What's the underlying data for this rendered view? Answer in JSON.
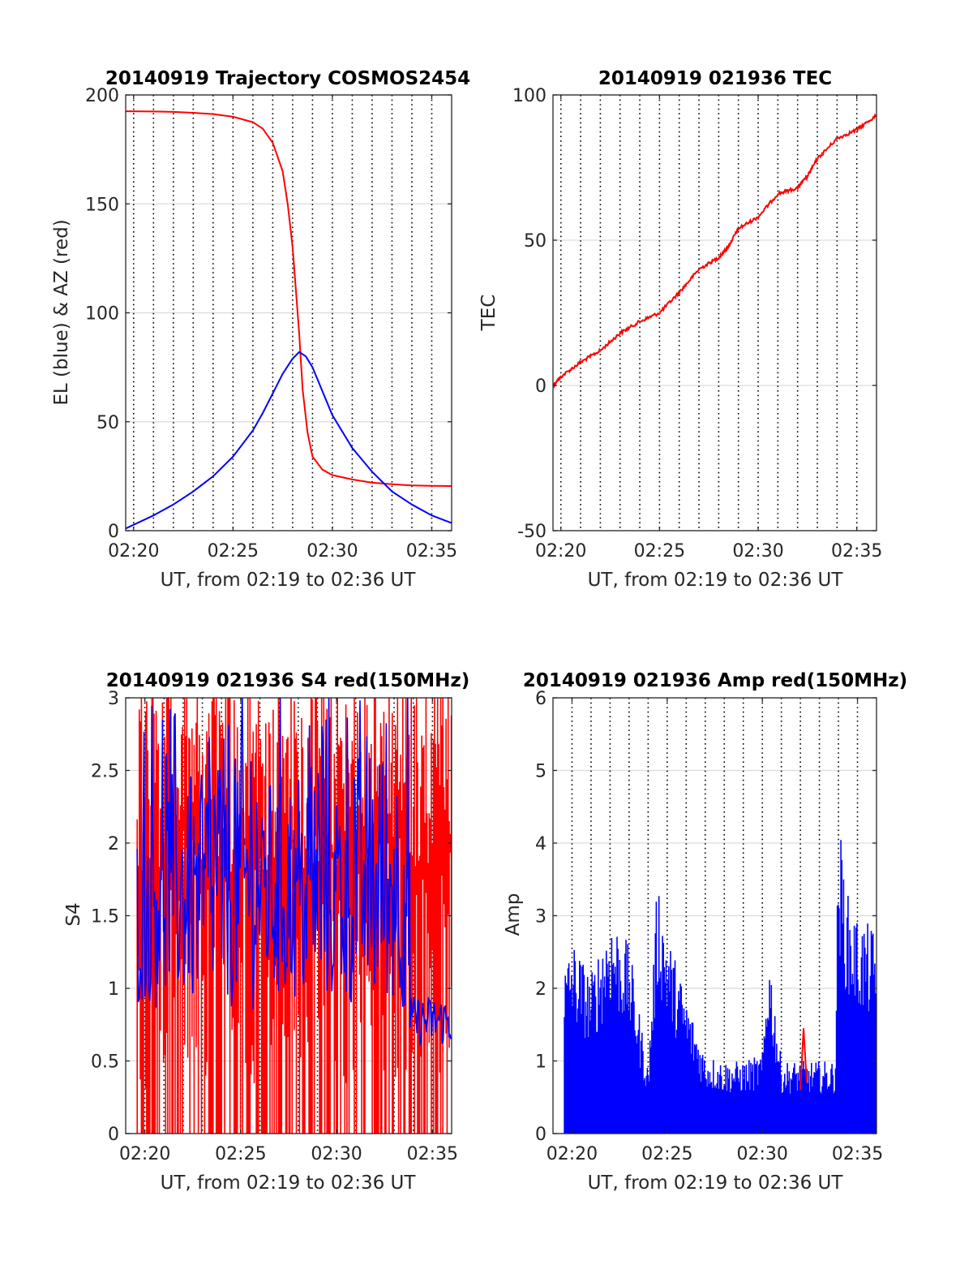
{
  "xlabel": "UT, from 02:19 to 02:36 UT",
  "colors": {
    "red": "#ff0000",
    "blue": "#0000ff",
    "grid": "#dcdcdc",
    "vline": "#000000"
  },
  "chart_data": [
    {
      "id": "traj",
      "type": "line",
      "title": "20140919 Trajectory COSMOS2454",
      "xlabel": "UT, from 02:19 to 02:36 UT",
      "ylabel": "EL (blue) & AZ (red)",
      "xlim": [
        "02:19:36",
        "02:36:00"
      ],
      "ylim": [
        0,
        200
      ],
      "xticks": [
        "02:20",
        "02:25",
        "02:30",
        "02:35"
      ],
      "yticks": [
        0,
        50,
        100,
        150,
        200
      ],
      "grid": true,
      "vlines": [
        "02:20:00",
        "02:21:00",
        "02:22:00",
        "02:23:00",
        "02:24:00",
        "02:25:00",
        "02:26:00",
        "02:27:00",
        "02:28:00",
        "02:29:00",
        "02:30:00",
        "02:31:00",
        "02:32:00",
        "02:33:00",
        "02:34:00",
        "02:35:00"
      ],
      "series": [
        {
          "color": "red",
          "x": [
            "02:19:36",
            "02:21:00",
            "02:22:00",
            "02:23:00",
            "02:24:00",
            "02:25:00",
            "02:26:00",
            "02:26:30",
            "02:27:00",
            "02:27:30",
            "02:27:45",
            "02:28:00",
            "02:28:10",
            "02:28:20",
            "02:28:30",
            "02:28:45",
            "02:29:00",
            "02:29:30",
            "02:30:00",
            "02:31:00",
            "02:32:00",
            "02:33:00",
            "02:34:00",
            "02:35:00",
            "02:36:00"
          ],
          "y": [
            192.5,
            192.4,
            192.2,
            191.8,
            191.2,
            190.0,
            187.5,
            184.5,
            178,
            165,
            150,
            130,
            110,
            90,
            65,
            45,
            34,
            28,
            25.5,
            23.5,
            22,
            21.3,
            20.8,
            20.6,
            20.5
          ]
        },
        {
          "color": "blue",
          "x": [
            "02:19:36",
            "02:21:00",
            "02:22:00",
            "02:23:00",
            "02:24:00",
            "02:25:00",
            "02:26:00",
            "02:26:30",
            "02:27:00",
            "02:27:30",
            "02:28:00",
            "02:28:20",
            "02:28:40",
            "02:29:00",
            "02:29:30",
            "02:30:00",
            "02:31:00",
            "02:32:00",
            "02:33:00",
            "02:34:00",
            "02:35:00",
            "02:36:00"
          ],
          "y": [
            1,
            7,
            12,
            18,
            25,
            34,
            46,
            54,
            63,
            72,
            79,
            82,
            80,
            75,
            64,
            53,
            38,
            27,
            18,
            12,
            7,
            3.5
          ]
        }
      ]
    },
    {
      "id": "tec",
      "type": "line",
      "title": "20140919 021936 TEC",
      "xlabel": "UT, from 02:19 to 02:36 UT",
      "ylabel": "TEC",
      "xlim": [
        "02:19:36",
        "02:36:00"
      ],
      "ylim": [
        -50,
        100
      ],
      "xticks": [
        "02:20",
        "02:25",
        "02:30",
        "02:35"
      ],
      "yticks": [
        -50,
        0,
        50,
        100
      ],
      "grid": true,
      "vlines": [
        "02:20:00",
        "02:21:00",
        "02:22:00",
        "02:23:00",
        "02:24:00",
        "02:25:00",
        "02:26:00",
        "02:27:00",
        "02:28:00",
        "02:29:00",
        "02:30:00",
        "02:31:00",
        "02:32:00",
        "02:33:00",
        "02:34:00",
        "02:35:00"
      ],
      "series": [
        {
          "color": "red",
          "x": [
            "02:19:36",
            "02:20:00",
            "02:21:00",
            "02:22:00",
            "02:23:00",
            "02:24:00",
            "02:25:00",
            "02:26:00",
            "02:27:00",
            "02:28:00",
            "02:28:30",
            "02:29:00",
            "02:30:00",
            "02:31:00",
            "02:32:00",
            "02:32:30",
            "02:33:00",
            "02:34:00",
            "02:35:00",
            "02:36:00"
          ],
          "y": [
            0,
            3,
            8,
            12,
            18,
            22,
            25,
            32,
            40,
            44,
            48,
            54,
            58,
            66,
            68,
            72,
            78,
            85,
            88,
            93
          ]
        }
      ]
    },
    {
      "id": "s4",
      "type": "line",
      "title": "20140919 021936 S4 red(150MHz)",
      "xlabel": "UT, from 02:19 to 02:36 UT",
      "ylabel": "S4",
      "xlim": [
        "02:19:00",
        "02:36:00"
      ],
      "ylim": [
        0,
        3
      ],
      "xticks": [
        "02:20",
        "02:25",
        "02:30",
        "02:35"
      ],
      "yticks": [
        0,
        0.5,
        1,
        1.5,
        2,
        2.5,
        3
      ],
      "grid": true,
      "vlines": [
        "02:20:00",
        "02:21:00",
        "02:22:00",
        "02:23:00",
        "02:24:00",
        "02:25:00",
        "02:26:00",
        "02:27:00",
        "02:28:00",
        "02:29:00",
        "02:30:00",
        "02:31:00",
        "02:32:00",
        "02:33:00",
        "02:34:00",
        "02:35:00"
      ],
      "series": [
        {
          "color": "red",
          "note_noise": "dense spikes between 0 and 3",
          "x": [
            "02:19:36",
            "02:34:00",
            "02:36:00"
          ],
          "y": [
            1.5,
            2.0,
            1.5
          ]
        },
        {
          "color": "blue",
          "x": [
            "02:19:36",
            "02:22:00",
            "02:24:00",
            "02:26:00",
            "02:28:00",
            "02:30:00",
            "02:32:00",
            "02:33:50",
            "02:34:00",
            "02:35:00",
            "02:36:00"
          ],
          "y": [
            2.2,
            2.0,
            2.3,
            2.0,
            2.4,
            2.2,
            2.2,
            2.3,
            0.75,
            0.75,
            0.75
          ]
        }
      ]
    },
    {
      "id": "amp",
      "type": "line",
      "title": "20140919 021936 Amp red(150MHz)",
      "xlabel": "UT, from 02:19 to 02:36 UT",
      "ylabel": "Amp",
      "xlim": [
        "02:19:00",
        "02:36:00"
      ],
      "ylim": [
        0,
        6
      ],
      "xticks": [
        "02:20",
        "02:25",
        "02:30",
        "02:35"
      ],
      "yticks": [
        0,
        1,
        2,
        3,
        4,
        5,
        6
      ],
      "grid": true,
      "vlines": [
        "02:20:00",
        "02:21:00",
        "02:22:00",
        "02:23:00",
        "02:24:00",
        "02:25:00",
        "02:26:00",
        "02:27:00",
        "02:28:00",
        "02:29:00",
        "02:30:00",
        "02:31:00",
        "02:32:00",
        "02:33:00",
        "02:34:00",
        "02:35:00"
      ],
      "series": [
        {
          "color": "blue",
          "x": [
            "02:19:36",
            "02:20:00",
            "02:21:00",
            "02:22:00",
            "02:23:00",
            "02:24:00",
            "02:24:30",
            "02:25:00",
            "02:26:00",
            "02:27:00",
            "02:28:00",
            "02:29:00",
            "02:30:00",
            "02:30:20",
            "02:31:00",
            "02:32:00",
            "02:33:00",
            "02:33:50",
            "02:34:00",
            "02:34:30",
            "02:35:00",
            "02:36:00"
          ],
          "y": [
            2.3,
            2.7,
            2.2,
            3.1,
            2.6,
            0.9,
            3.6,
            2.8,
            1.9,
            1.1,
            1.0,
            1.0,
            1.1,
            2.6,
            1.0,
            1.0,
            1.0,
            1.0,
            4.4,
            3.3,
            3.0,
            2.8
          ]
        },
        {
          "color": "red",
          "x": [
            "02:32:00",
            "02:32:10",
            "02:32:20"
          ],
          "y": [
            0.6,
            1.45,
            0.7
          ]
        }
      ]
    }
  ]
}
